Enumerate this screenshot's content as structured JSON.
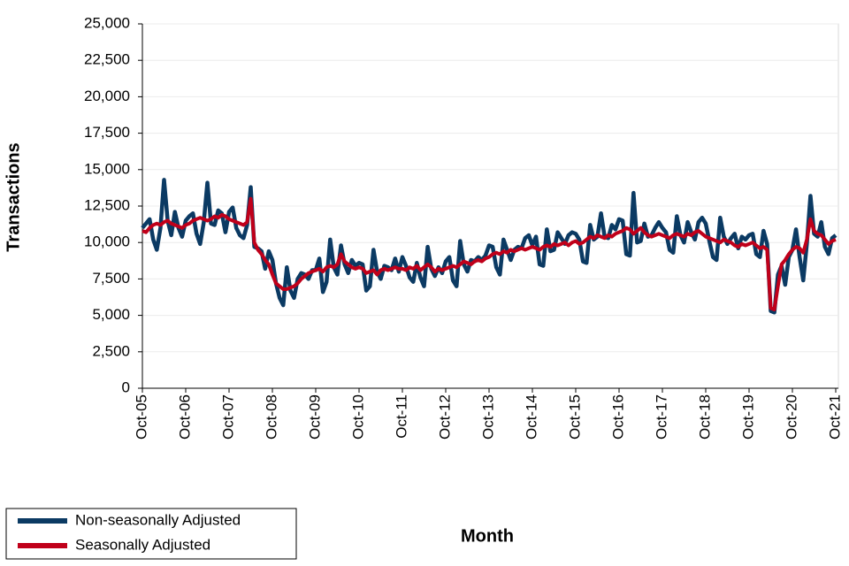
{
  "chart_data": {
    "type": "line",
    "x_label": "Month",
    "y_label": "Transactions",
    "categories": [
      "Oct-05",
      null,
      null,
      null,
      null,
      null,
      null,
      null,
      null,
      null,
      null,
      null,
      "Oct-06",
      null,
      null,
      null,
      null,
      null,
      null,
      null,
      null,
      null,
      null,
      null,
      "Oct-07",
      null,
      null,
      null,
      null,
      null,
      null,
      null,
      null,
      null,
      null,
      null,
      "Oct-08",
      null,
      null,
      null,
      null,
      null,
      null,
      null,
      null,
      null,
      null,
      null,
      "Oct-09",
      null,
      null,
      null,
      null,
      null,
      null,
      null,
      null,
      null,
      null,
      null,
      "Oct-10",
      null,
      null,
      null,
      null,
      null,
      null,
      null,
      null,
      null,
      null,
      null,
      "Oct-11",
      null,
      null,
      null,
      null,
      null,
      null,
      null,
      null,
      null,
      null,
      null,
      "Oct-12",
      null,
      null,
      null,
      null,
      null,
      null,
      null,
      null,
      null,
      null,
      null,
      "Oct-13",
      null,
      null,
      null,
      null,
      null,
      null,
      null,
      null,
      null,
      null,
      null,
      "Oct-14",
      null,
      null,
      null,
      null,
      null,
      null,
      null,
      null,
      null,
      null,
      null,
      "Oct-15",
      null,
      null,
      null,
      null,
      null,
      null,
      null,
      null,
      null,
      null,
      null,
      "Oct-16",
      null,
      null,
      null,
      null,
      null,
      null,
      null,
      null,
      null,
      null,
      null,
      "Oct-17",
      null,
      null,
      null,
      null,
      null,
      null,
      null,
      null,
      null,
      null,
      null,
      "Oct-18",
      null,
      null,
      null,
      null,
      null,
      null,
      null,
      null,
      null,
      null,
      null,
      "Oct-19",
      null,
      null,
      null,
      null,
      null,
      null,
      null,
      null,
      null,
      null,
      null,
      "Oct-20",
      null,
      null,
      null,
      null,
      null,
      null,
      null,
      null,
      null,
      null,
      null,
      "Oct-21"
    ],
    "series": [
      {
        "name": "Non-seasonally Adjusted",
        "color": "#0b3a63",
        "values": [
          11000,
          11300,
          11600,
          10200,
          9500,
          11000,
          14300,
          11500,
          10500,
          12100,
          11000,
          10400,
          11500,
          11800,
          12000,
          10600,
          9900,
          11400,
          14100,
          11300,
          11200,
          12200,
          12000,
          10700,
          12100,
          12400,
          11000,
          10500,
          10300,
          11200,
          13800,
          9700,
          9600,
          9400,
          8200,
          9400,
          8800,
          7200,
          6200,
          5700,
          8300,
          6700,
          6200,
          7500,
          7900,
          7800,
          7500,
          8100,
          8100,
          8900,
          6600,
          7300,
          10200,
          8300,
          7800,
          9800,
          8500,
          7900,
          8800,
          8400,
          8600,
          8500,
          6700,
          7000,
          9500,
          8000,
          7500,
          8400,
          8300,
          8100,
          8900,
          8000,
          9000,
          8400,
          7600,
          7300,
          8600,
          7600,
          7000,
          9700,
          8200,
          7700,
          8300,
          7900,
          8700,
          9000,
          7400,
          7000,
          10100,
          8500,
          8000,
          8800,
          8700,
          9000,
          8800,
          9100,
          9800,
          9700,
          8300,
          7800,
          10200,
          9500,
          8800,
          9500,
          9700,
          9600,
          10300,
          10500,
          9800,
          10400,
          8500,
          8400,
          10900,
          9400,
          9500,
          10700,
          10300,
          9900,
          10500,
          10700,
          10600,
          10200,
          8700,
          8600,
          11200,
          10200,
          10400,
          12000,
          10400,
          10300,
          11200,
          10900,
          11600,
          11500,
          9200,
          9100,
          13400,
          10000,
          10100,
          11300,
          10400,
          10500,
          11000,
          11400,
          11000,
          10700,
          9500,
          9300,
          11800,
          10500,
          10000,
          11400,
          10700,
          10200,
          11400,
          11700,
          11300,
          10100,
          9000,
          8800,
          11700,
          10400,
          9900,
          10300,
          10600,
          9600,
          10400,
          10200,
          10500,
          10600,
          9200,
          9000,
          10800,
          9900,
          5300,
          5200,
          7800,
          8400,
          7100,
          9000,
          9500,
          10900,
          9000,
          7400,
          9900,
          13200,
          10600,
          10400,
          11400,
          9700,
          9200,
          10300,
          10500
        ]
      },
      {
        "name": "Seasonally Adjusted",
        "color": "#c0001a",
        "values": [
          10800,
          10700,
          11000,
          11200,
          11300,
          11200,
          11400,
          11500,
          11300,
          11200,
          11100,
          11000,
          11200,
          11300,
          11500,
          11600,
          11700,
          11600,
          11500,
          11600,
          11800,
          11700,
          11900,
          11800,
          11600,
          11500,
          11400,
          11300,
          11200,
          11400,
          13000,
          10000,
          9500,
          9200,
          8800,
          8500,
          7800,
          7200,
          7000,
          6800,
          6800,
          6900,
          7000,
          7200,
          7500,
          7700,
          7900,
          8000,
          8100,
          8200,
          8000,
          8300,
          8400,
          8300,
          8500,
          9200,
          8700,
          8500,
          8300,
          8200,
          8300,
          8200,
          7900,
          8000,
          8100,
          7800,
          8100,
          8200,
          8100,
          8200,
          8300,
          8200,
          8200,
          8100,
          8300,
          8200,
          8400,
          8100,
          8300,
          8500,
          8300,
          8000,
          8200,
          8100,
          8200,
          8300,
          8400,
          8300,
          8500,
          8700,
          8600,
          8500,
          8700,
          8800,
          8700,
          8900,
          9000,
          9200,
          9300,
          9200,
          9400,
          9300,
          9500,
          9400,
          9500,
          9600,
          9500,
          9600,
          9700,
          9600,
          9500,
          9700,
          9800,
          9700,
          9900,
          9800,
          9900,
          10000,
          9800,
          10000,
          10100,
          9900,
          10000,
          10200,
          10400,
          10300,
          10500,
          10400,
          10300,
          10500,
          10400,
          10600,
          10700,
          10800,
          11000,
          10900,
          10600,
          10800,
          11000,
          10700,
          10500,
          10400,
          10500,
          10600,
          10500,
          10400,
          10300,
          10500,
          10600,
          10500,
          10400,
          10600,
          10500,
          10700,
          10800,
          10600,
          10400,
          10300,
          10200,
          10100,
          10000,
          10200,
          10100,
          10000,
          9800,
          9700,
          9900,
          9800,
          9900,
          10000,
          9800,
          9600,
          9700,
          9500,
          5500,
          5400,
          7000,
          8500,
          8800,
          9200,
          9500,
          9700,
          9600,
          9300,
          10200,
          11600,
          10800,
          10600,
          10500,
          10200,
          9900,
          10100,
          10200
        ]
      }
    ],
    "ylim": [
      0,
      25000
    ],
    "yticks": [
      0,
      {
        "value": 2500,
        "label": "2,500"
      },
      {
        "value": 5000,
        "label": "5,000"
      },
      {
        "value": 7500,
        "label": "7,500"
      },
      {
        "value": 10000,
        "label": "10,000"
      },
      {
        "value": 12500,
        "label": "12,500"
      },
      {
        "value": 15000,
        "label": "15,000"
      },
      {
        "value": 17500,
        "label": "17,500"
      },
      {
        "value": 20000,
        "label": "20,000"
      },
      {
        "value": 22500,
        "label": "22,500"
      },
      {
        "value": 25000,
        "label": "25,000"
      }
    ],
    "grid": true,
    "legend": "bottom-left"
  }
}
